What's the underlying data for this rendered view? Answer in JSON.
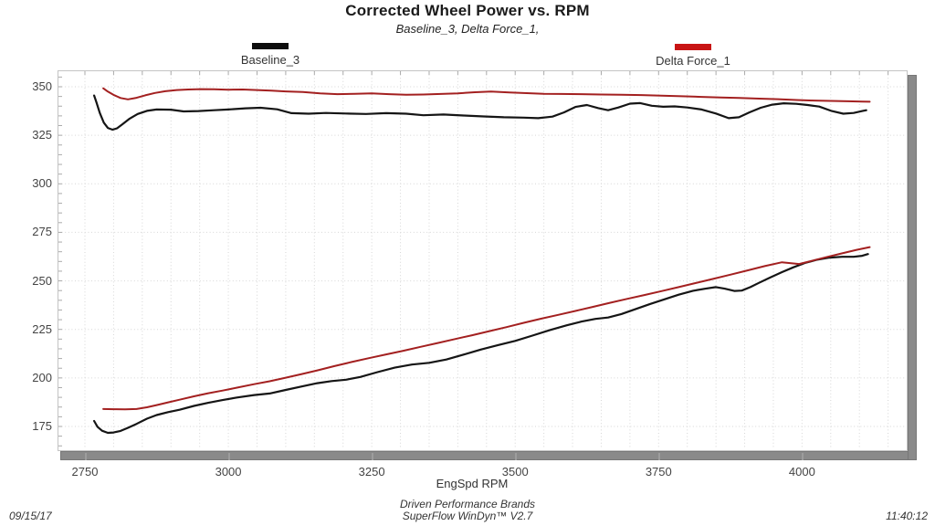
{
  "header": {
    "title": "Corrected Wheel Power vs. RPM",
    "subtitle": "Baseline_3, Delta Force_1,"
  },
  "legend": [
    {
      "label": "Baseline_3",
      "color": "#0d0d0d"
    },
    {
      "label": "Delta Force_1",
      "color": "#c81414"
    }
  ],
  "footer": {
    "date": "09/15/17",
    "brand": "Driven Performance Brands",
    "software": "SuperFlow WinDyn™ V2.7",
    "time": "11:40:12"
  },
  "chart_data": {
    "type": "line",
    "title": "Corrected Wheel Power vs. RPM",
    "subtitle": "Baseline_3, Delta Force_1,",
    "xlabel": "EngSpd  RPM",
    "ylabel": "",
    "x_ticks": [
      2750,
      3000,
      3250,
      3500,
      3750,
      4000
    ],
    "y_ticks": [
      175,
      200,
      225,
      250,
      275,
      300,
      325,
      350
    ],
    "xlim": [
      2702,
      4185
    ],
    "ylim": [
      163,
      358
    ],
    "x_minor_step": 50,
    "y_minor_step": 5,
    "grid": "dotted",
    "legend_position": "top",
    "series": [
      {
        "name": "Baseline_3 (upper curve)",
        "color": "#151515",
        "width": 2.2,
        "points": [
          [
            2766,
            345.5
          ],
          [
            2770,
            342.0
          ],
          [
            2776,
            336.5
          ],
          [
            2783,
            331.5
          ],
          [
            2790,
            328.8
          ],
          [
            2798,
            327.9
          ],
          [
            2806,
            328.6
          ],
          [
            2816,
            330.8
          ],
          [
            2828,
            333.6
          ],
          [
            2842,
            336.0
          ],
          [
            2858,
            337.6
          ],
          [
            2875,
            338.3
          ],
          [
            2900,
            338.2
          ],
          [
            2922,
            337.3
          ],
          [
            2948,
            337.5
          ],
          [
            2975,
            337.9
          ],
          [
            3000,
            338.3
          ],
          [
            3030,
            338.9
          ],
          [
            3056,
            339.2
          ],
          [
            3085,
            338.4
          ],
          [
            3110,
            336.4
          ],
          [
            3140,
            336.1
          ],
          [
            3170,
            336.5
          ],
          [
            3205,
            336.2
          ],
          [
            3240,
            336.0
          ],
          [
            3275,
            336.4
          ],
          [
            3310,
            336.1
          ],
          [
            3340,
            335.3
          ],
          [
            3375,
            335.7
          ],
          [
            3410,
            335.2
          ],
          [
            3445,
            334.7
          ],
          [
            3480,
            334.3
          ],
          [
            3515,
            334.1
          ],
          [
            3540,
            333.8
          ],
          [
            3565,
            334.6
          ],
          [
            3585,
            336.8
          ],
          [
            3605,
            339.6
          ],
          [
            3625,
            340.6
          ],
          [
            3645,
            339.0
          ],
          [
            3662,
            337.9
          ],
          [
            3680,
            339.3
          ],
          [
            3700,
            341.3
          ],
          [
            3718,
            341.6
          ],
          [
            3738,
            340.2
          ],
          [
            3758,
            339.7
          ],
          [
            3778,
            339.9
          ],
          [
            3800,
            339.3
          ],
          [
            3825,
            338.3
          ],
          [
            3850,
            336.2
          ],
          [
            3872,
            333.8
          ],
          [
            3890,
            334.3
          ],
          [
            3908,
            336.8
          ],
          [
            3928,
            339.2
          ],
          [
            3948,
            340.8
          ],
          [
            3968,
            341.5
          ],
          [
            3990,
            341.2
          ],
          [
            4010,
            340.6
          ],
          [
            4030,
            339.8
          ],
          [
            4052,
            337.5
          ],
          [
            4072,
            336.1
          ],
          [
            4090,
            336.5
          ],
          [
            4105,
            337.5
          ],
          [
            4112,
            337.9
          ]
        ]
      },
      {
        "name": "Delta Force_1 (upper curve)",
        "color": "#a32020",
        "width": 2,
        "points": [
          [
            2782,
            349.2
          ],
          [
            2790,
            347.5
          ],
          [
            2800,
            345.8
          ],
          [
            2812,
            344.2
          ],
          [
            2825,
            343.5
          ],
          [
            2840,
            344.3
          ],
          [
            2855,
            345.6
          ],
          [
            2872,
            346.8
          ],
          [
            2890,
            347.7
          ],
          [
            2910,
            348.3
          ],
          [
            2930,
            348.6
          ],
          [
            2952,
            348.8
          ],
          [
            2975,
            348.7
          ],
          [
            3000,
            348.5
          ],
          [
            3025,
            348.6
          ],
          [
            3050,
            348.3
          ],
          [
            3075,
            348.0
          ],
          [
            3100,
            347.6
          ],
          [
            3130,
            347.3
          ],
          [
            3160,
            346.6
          ],
          [
            3190,
            346.2
          ],
          [
            3220,
            346.4
          ],
          [
            3250,
            346.6
          ],
          [
            3280,
            346.2
          ],
          [
            3310,
            345.9
          ],
          [
            3340,
            346.0
          ],
          [
            3370,
            346.3
          ],
          [
            3400,
            346.6
          ],
          [
            3430,
            347.2
          ],
          [
            3458,
            347.5
          ],
          [
            3490,
            347.1
          ],
          [
            3520,
            346.7
          ],
          [
            3550,
            346.4
          ],
          [
            3580,
            346.3
          ],
          [
            3615,
            346.2
          ],
          [
            3650,
            346.0
          ],
          [
            3685,
            345.9
          ],
          [
            3720,
            345.7
          ],
          [
            3755,
            345.4
          ],
          [
            3790,
            345.1
          ],
          [
            3825,
            344.8
          ],
          [
            3858,
            344.5
          ],
          [
            3890,
            344.2
          ],
          [
            3925,
            343.9
          ],
          [
            3958,
            343.6
          ],
          [
            3990,
            343.2
          ],
          [
            4020,
            342.9
          ],
          [
            4050,
            342.7
          ],
          [
            4080,
            342.5
          ],
          [
            4105,
            342.4
          ],
          [
            4118,
            342.3
          ]
        ]
      },
      {
        "name": "Baseline_3 (lower curve)",
        "color": "#151515",
        "width": 2.2,
        "points": [
          [
            2766,
            177.8
          ],
          [
            2772,
            174.8
          ],
          [
            2780,
            172.8
          ],
          [
            2790,
            171.7
          ],
          [
            2800,
            171.9
          ],
          [
            2812,
            172.7
          ],
          [
            2825,
            174.3
          ],
          [
            2840,
            176.3
          ],
          [
            2858,
            179.0
          ],
          [
            2875,
            180.9
          ],
          [
            2895,
            182.4
          ],
          [
            2915,
            183.6
          ],
          [
            2940,
            185.6
          ],
          [
            2965,
            187.2
          ],
          [
            2990,
            188.6
          ],
          [
            3015,
            189.9
          ],
          [
            3045,
            191.2
          ],
          [
            3072,
            192.0
          ],
          [
            3100,
            193.8
          ],
          [
            3128,
            195.6
          ],
          [
            3155,
            197.3
          ],
          [
            3180,
            198.4
          ],
          [
            3205,
            199.1
          ],
          [
            3230,
            200.5
          ],
          [
            3260,
            203.0
          ],
          [
            3290,
            205.3
          ],
          [
            3320,
            206.9
          ],
          [
            3350,
            207.8
          ],
          [
            3380,
            209.5
          ],
          [
            3410,
            212.0
          ],
          [
            3440,
            214.6
          ],
          [
            3470,
            216.9
          ],
          [
            3500,
            219.1
          ],
          [
            3530,
            221.8
          ],
          [
            3560,
            224.6
          ],
          [
            3590,
            227.1
          ],
          [
            3615,
            229.0
          ],
          [
            3640,
            230.4
          ],
          [
            3662,
            231.1
          ],
          [
            3685,
            232.9
          ],
          [
            3710,
            235.5
          ],
          [
            3735,
            238.1
          ],
          [
            3760,
            240.5
          ],
          [
            3785,
            242.9
          ],
          [
            3810,
            244.9
          ],
          [
            3832,
            246.0
          ],
          [
            3850,
            246.8
          ],
          [
            3865,
            246.0
          ],
          [
            3882,
            244.8
          ],
          [
            3895,
            245.0
          ],
          [
            3910,
            246.8
          ],
          [
            3925,
            249.0
          ],
          [
            3945,
            251.8
          ],
          [
            3965,
            254.5
          ],
          [
            3985,
            257.0
          ],
          [
            4005,
            259.2
          ],
          [
            4025,
            260.8
          ],
          [
            4048,
            262.0
          ],
          [
            4070,
            262.4
          ],
          [
            4090,
            262.4
          ],
          [
            4105,
            262.9
          ],
          [
            4115,
            263.8
          ]
        ]
      },
      {
        "name": "Delta Force_1 (lower curve)",
        "color": "#a32020",
        "width": 2,
        "points": [
          [
            2782,
            184.0
          ],
          [
            2800,
            183.9
          ],
          [
            2820,
            183.8
          ],
          [
            2840,
            184.0
          ],
          [
            2858,
            184.9
          ],
          [
            2875,
            186.0
          ],
          [
            2895,
            187.4
          ],
          [
            2915,
            188.8
          ],
          [
            2940,
            190.5
          ],
          [
            2965,
            192.1
          ],
          [
            2990,
            193.5
          ],
          [
            3015,
            195.0
          ],
          [
            3045,
            196.8
          ],
          [
            3072,
            198.3
          ],
          [
            3100,
            200.1
          ],
          [
            3128,
            202.0
          ],
          [
            3155,
            203.9
          ],
          [
            3185,
            206.1
          ],
          [
            3215,
            208.2
          ],
          [
            3245,
            210.2
          ],
          [
            3275,
            212.1
          ],
          [
            3305,
            214.0
          ],
          [
            3335,
            216.0
          ],
          [
            3365,
            218.0
          ],
          [
            3395,
            220.0
          ],
          [
            3425,
            222.0
          ],
          [
            3455,
            224.1
          ],
          [
            3485,
            226.2
          ],
          [
            3515,
            228.4
          ],
          [
            3545,
            230.5
          ],
          [
            3575,
            232.5
          ],
          [
            3605,
            234.5
          ],
          [
            3635,
            236.6
          ],
          [
            3665,
            238.7
          ],
          [
            3695,
            240.7
          ],
          [
            3725,
            242.7
          ],
          [
            3755,
            244.7
          ],
          [
            3785,
            246.8
          ],
          [
            3815,
            248.9
          ],
          [
            3845,
            251.0
          ],
          [
            3875,
            253.2
          ],
          [
            3905,
            255.4
          ],
          [
            3935,
            257.6
          ],
          [
            3965,
            259.6
          ],
          [
            3995,
            258.7
          ],
          [
            4019,
            260.5
          ],
          [
            4045,
            262.4
          ],
          [
            4070,
            264.2
          ],
          [
            4095,
            266.0
          ],
          [
            4118,
            267.4
          ]
        ]
      }
    ]
  }
}
